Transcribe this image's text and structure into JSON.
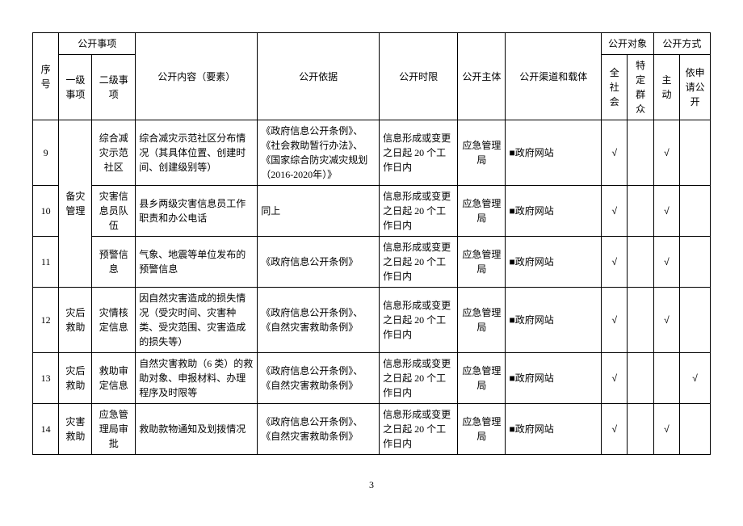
{
  "headers": {
    "seq": "序号",
    "disclosure_item": "公开事项",
    "level1": "一级事项",
    "level2": "二级事项",
    "content": "公开内容（要素）",
    "basis": "公开依据",
    "timelimit": "公开时限",
    "subject": "公开主体",
    "channel": "公开渠道和载体",
    "target": "公开对象",
    "target_whole": "全社会",
    "target_specific": "特定群众",
    "method": "公开方式",
    "method_active": "主动",
    "method_request": "依申请公开"
  },
  "rows": [
    {
      "seq": "9",
      "l1": "备灾管理",
      "l1_rowspan": 3,
      "l2": "综合减灾示范社区",
      "content": "综合减灾示范社区分布情况（其具体位置、创建时间、创建级别等）",
      "basis": "《政府信息公开条例》、《社会救助暂行办法》、《国家综合防灾减灾规划（2016-2020年）》",
      "timelimit": "信息形成或变更之日起 20 个工作日内",
      "subject": "应急管理局",
      "channel": "■政府网站",
      "whole": "√",
      "specific": "",
      "active": "√",
      "request": ""
    },
    {
      "seq": "10",
      "l2": "灾害信息员队伍",
      "content": "县乡两级灾害信息员工作职责和办公电话",
      "basis": "同上",
      "timelimit": "信息形成或变更之日起 20 个工作日内",
      "subject": "应急管理局",
      "channel": "■政府网站",
      "whole": "√",
      "specific": "",
      "active": "√",
      "request": ""
    },
    {
      "seq": "11",
      "l2": "预警信息",
      "content": "气象、地震等单位发布的预警信息",
      "basis": "《政府信息公开条例》",
      "timelimit": "信息形成或变更之日起 20 个工作日内",
      "subject": "应急管理局",
      "channel": "■政府网站",
      "whole": "√",
      "specific": "",
      "active": "√",
      "request": ""
    },
    {
      "seq": "12",
      "l1": "灾后救助",
      "l1_rowspan": 1,
      "l2": "灾情核定信息",
      "content": "因自然灾害造成的损失情况（受灾时间、灾害种类、受灾范围、灾害造成的损失等）",
      "basis": "《政府信息公开条例》、《自然灾害救助条例》",
      "timelimit": "信息形成或变更之日起 20 个工作日内",
      "subject": "应急管理局",
      "channel": "■政府网站",
      "whole": "√",
      "specific": "",
      "active": "√",
      "request": ""
    },
    {
      "seq": "13",
      "l1": "灾后救助",
      "l1_rowspan": 1,
      "l2": "救助审定信息",
      "content": "自然灾害救助（6 类）的救助对象、申报材料、办理程序及时限等",
      "basis": "《政府信息公开条例》、《自然灾害救助条例》",
      "timelimit": "信息形成或变更之日起 20 个工作日内",
      "subject": "应急管理局",
      "channel": "■政府网站",
      "whole": "√",
      "specific": "",
      "active": "",
      "request": "√"
    },
    {
      "seq": "14",
      "l1": "灾害救助",
      "l1_rowspan": 1,
      "l2": "应急管理局审批",
      "content": "救助款物通知及划拨情况",
      "basis": "《政府信息公开条例》、《自然灾害救助条例》",
      "timelimit": "信息形成或变更之日起 20 个工作日内",
      "subject": "应急管理局",
      "channel": "■政府网站",
      "whole": "√",
      "specific": "",
      "active": "√",
      "request": ""
    }
  ],
  "page_number": "3"
}
